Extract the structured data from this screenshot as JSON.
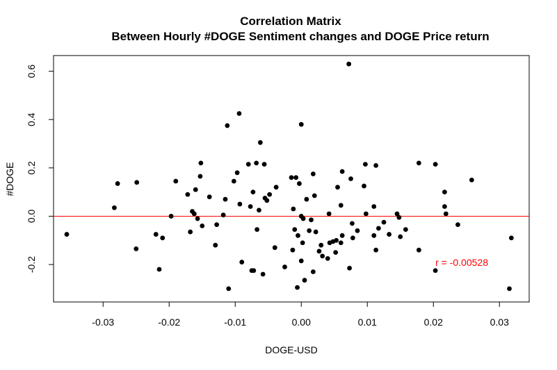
{
  "chart_data": {
    "type": "scatter",
    "title": "Correlation Matrix",
    "subtitle": "Between Hourly #DOGE Sentiment changes and DOGE Price return",
    "xlabel": "DOGE-USD",
    "ylabel": "#DOGE",
    "xlim": [
      -0.0375,
      0.0345
    ],
    "ylim": [
      -0.355,
      0.665
    ],
    "x_ticks": [
      -0.03,
      -0.02,
      -0.01,
      0.0,
      0.01,
      0.02,
      0.03
    ],
    "x_tick_labels": [
      "-0.03",
      "-0.02",
      "-0.01",
      "0.00",
      "0.01",
      "0.02",
      "0.03"
    ],
    "y_ticks": [
      -0.2,
      0.0,
      0.2,
      0.4,
      0.6
    ],
    "y_tick_labels": [
      "-0.2",
      "0.0",
      "0.2",
      "0.4",
      "0.6"
    ],
    "reference_line": {
      "y": 0.0,
      "color": "#ff0000"
    },
    "annotation": {
      "text": "r = -0.00528",
      "x": 0.0203,
      "y": -0.205,
      "color": "#ff0000"
    },
    "grid": false,
    "point_color": "#000000",
    "points": [
      [
        -0.0355,
        -0.075
      ],
      [
        -0.0283,
        0.035
      ],
      [
        -0.0278,
        0.135
      ],
      [
        -0.0249,
        0.14
      ],
      [
        -0.025,
        -0.135
      ],
      [
        -0.022,
        -0.075
      ],
      [
        -0.0215,
        -0.22
      ],
      [
        -0.021,
        -0.09
      ],
      [
        -0.0197,
        0.0
      ],
      [
        -0.019,
        0.145
      ],
      [
        -0.0172,
        0.09
      ],
      [
        -0.0168,
        -0.065
      ],
      [
        -0.0165,
        0.02
      ],
      [
        -0.0162,
        0.01
      ],
      [
        -0.016,
        0.11
      ],
      [
        -0.0157,
        -0.01
      ],
      [
        -0.0153,
        0.165
      ],
      [
        -0.0152,
        0.22
      ],
      [
        -0.015,
        -0.04
      ],
      [
        -0.0139,
        0.08
      ],
      [
        -0.013,
        -0.12
      ],
      [
        -0.0128,
        -0.035
      ],
      [
        -0.0118,
        0.005
      ],
      [
        -0.0115,
        0.07
      ],
      [
        -0.0112,
        0.375
      ],
      [
        -0.011,
        -0.3
      ],
      [
        -0.0102,
        0.145
      ],
      [
        -0.0097,
        0.18
      ],
      [
        -0.0094,
        0.425
      ],
      [
        -0.0093,
        0.05
      ],
      [
        -0.009,
        -0.19
      ],
      [
        -0.008,
        0.215
      ],
      [
        -0.0077,
        0.04
      ],
      [
        -0.0075,
        -0.225
      ],
      [
        -0.0073,
        0.1
      ],
      [
        -0.0072,
        -0.225
      ],
      [
        -0.0068,
        0.22
      ],
      [
        -0.0067,
        -0.055
      ],
      [
        -0.0064,
        0.025
      ],
      [
        -0.0062,
        0.305
      ],
      [
        -0.0058,
        -0.24
      ],
      [
        -0.0056,
        0.215
      ],
      [
        -0.0055,
        0.075
      ],
      [
        -0.0052,
        0.065
      ],
      [
        -0.0048,
        0.09
      ],
      [
        -0.004,
        -0.13
      ],
      [
        -0.0038,
        0.12
      ],
      [
        -0.0025,
        -0.21
      ],
      [
        -0.0015,
        0.16
      ],
      [
        -0.0013,
        -0.14
      ],
      [
        -0.0012,
        0.03
      ],
      [
        -0.001,
        -0.055
      ],
      [
        -0.0008,
        0.16
      ],
      [
        -0.0006,
        -0.295
      ],
      [
        -0.0005,
        -0.08
      ],
      [
        -0.0003,
        0.135
      ],
      [
        0.0,
        0.0
      ],
      [
        0.0,
        0.38
      ],
      [
        0.0,
        -0.185
      ],
      [
        0.0002,
        -0.11
      ],
      [
        0.0003,
        -0.01
      ],
      [
        0.0005,
        -0.265
      ],
      [
        0.0008,
        0.07
      ],
      [
        0.0012,
        -0.06
      ],
      [
        0.0015,
        -0.015
      ],
      [
        0.0018,
        0.175
      ],
      [
        0.0018,
        -0.23
      ],
      [
        0.002,
        0.085
      ],
      [
        0.0022,
        -0.065
      ],
      [
        0.0027,
        -0.145
      ],
      [
        0.003,
        -0.12
      ],
      [
        0.0032,
        -0.165
      ],
      [
        0.004,
        -0.175
      ],
      [
        0.0042,
        0.01
      ],
      [
        0.0043,
        -0.11
      ],
      [
        0.0048,
        -0.105
      ],
      [
        0.0052,
        -0.15
      ],
      [
        0.0053,
        -0.1
      ],
      [
        0.0055,
        0.12
      ],
      [
        0.006,
        -0.11
      ],
      [
        0.0062,
        0.185
      ],
      [
        0.006,
        0.045
      ],
      [
        0.0062,
        -0.08
      ],
      [
        0.0072,
        0.63
      ],
      [
        0.0073,
        -0.215
      ],
      [
        0.0075,
        0.155
      ],
      [
        0.0077,
        -0.03
      ],
      [
        0.0078,
        -0.09
      ],
      [
        0.0085,
        -0.06
      ],
      [
        0.0095,
        0.125
      ],
      [
        0.0097,
        0.215
      ],
      [
        0.0098,
        0.01
      ],
      [
        0.011,
        -0.08
      ],
      [
        0.011,
        0.04
      ],
      [
        0.0113,
        0.21
      ],
      [
        0.0113,
        -0.14
      ],
      [
        0.0117,
        -0.05
      ],
      [
        0.0125,
        -0.025
      ],
      [
        0.0133,
        -0.075
      ],
      [
        0.0145,
        0.01
      ],
      [
        0.0148,
        -0.005
      ],
      [
        0.015,
        -0.085
      ],
      [
        0.0158,
        -0.055
      ],
      [
        0.0178,
        -0.14
      ],
      [
        0.0178,
        0.22
      ],
      [
        0.0203,
        0.215
      ],
      [
        0.0203,
        -0.225
      ],
      [
        0.0217,
        0.1
      ],
      [
        0.0217,
        0.04
      ],
      [
        0.0219,
        0.01
      ],
      [
        0.0237,
        -0.035
      ],
      [
        0.0258,
        0.15
      ],
      [
        0.0315,
        -0.3
      ],
      [
        0.0318,
        -0.09
      ]
    ]
  }
}
